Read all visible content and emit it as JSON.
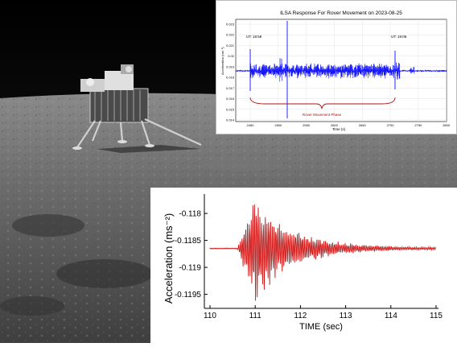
{
  "top_chart": {
    "title": "ILSA Response For Rover Movement on 2023-08-25",
    "xlabel": "Time (s)",
    "ylabel": "Acceleration (ms⁻²)",
    "annotation_left": "UT: 18:58",
    "annotation_right": "UT: 19:06",
    "phase_label": "Rover Movement Phase",
    "series_color": "#1010ff",
    "annotation_color": "#b01010",
    "x_ticks": [
      "2450",
      "2500",
      "2550",
      "2600",
      "2650",
      "2700",
      "2750",
      "2800"
    ],
    "y_ticks": [
      "0.023",
      "0.022",
      "0.021",
      "0.02",
      "0.019",
      "0.018",
      "0.017",
      "0.016",
      "0.015",
      "0.014"
    ]
  },
  "chart_data": {
    "type": "line",
    "xlabel": "TIME (sec)",
    "ylabel": "Acceleration (ms⁻²)",
    "xlim": [
      110,
      115
    ],
    "ylim": [
      -0.1197,
      -0.1177
    ],
    "x_ticks": [
      "110",
      "111",
      "112",
      "113",
      "114",
      "115"
    ],
    "y_ticks": [
      "-0.118",
      "-0.1185",
      "-0.119",
      "-0.1195"
    ],
    "series": [
      {
        "color": "#cc1111",
        "baseline": -0.11865,
        "onset_x": 110.6,
        "peak_x": 111.0,
        "peak_amplitude": 0.00105,
        "decay_end_x": 114.4,
        "end_x": 115.0
      }
    ]
  }
}
